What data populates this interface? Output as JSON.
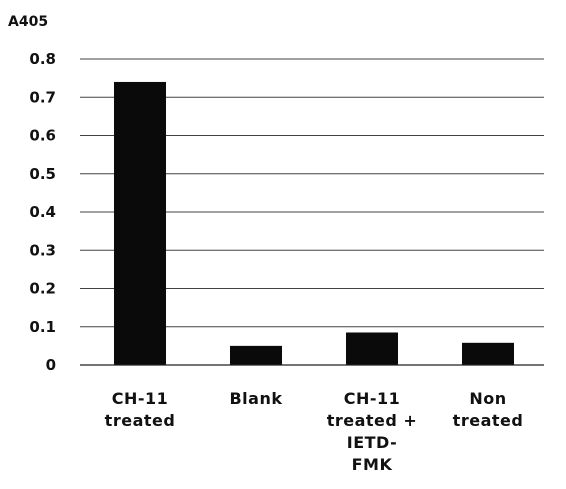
{
  "chart_data": {
    "type": "bar",
    "ylabel": "A405",
    "categories": [
      [
        "CH-11",
        "treated"
      ],
      [
        "Blank"
      ],
      [
        "CH-11",
        "treated +",
        "IETD-",
        "FMK"
      ],
      [
        "Non",
        "treated"
      ]
    ],
    "values": [
      0.74,
      0.05,
      0.085,
      0.058
    ],
    "ylim": [
      0,
      0.8
    ],
    "yticks": [
      "0",
      "0.1",
      "0.2",
      "0.3",
      "0.4",
      "0.5",
      "0.6",
      "0.7",
      "0.8"
    ],
    "grid": true,
    "bar_color": "#0a0a0a"
  }
}
